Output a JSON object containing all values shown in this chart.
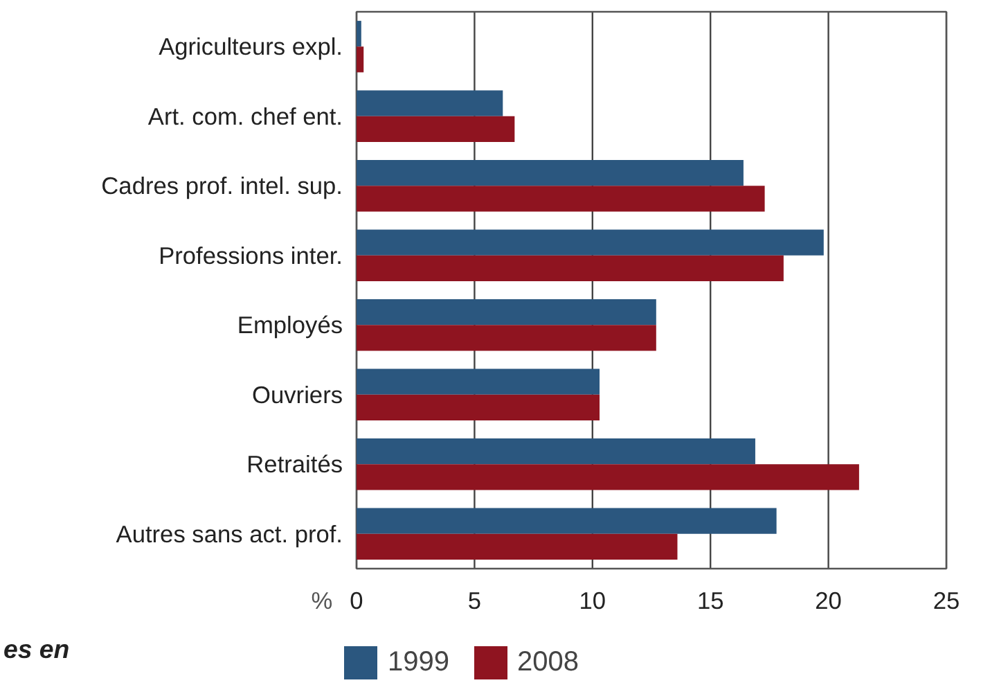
{
  "chart_data": {
    "type": "bar",
    "orientation": "horizontal",
    "xlabel": "%",
    "categories": [
      "Agriculteurs expl.",
      "Art. com. chef ent.",
      "Cadres prof. intel. sup.",
      "Professions inter.",
      "Employés",
      "Ouvriers",
      "Retraités",
      "Autres sans act. prof."
    ],
    "series": [
      {
        "name": "1999",
        "color": "#2b577f",
        "values": [
          0.2,
          6.2,
          16.4,
          19.8,
          12.7,
          10.3,
          16.9,
          17.8
        ]
      },
      {
        "name": "2008",
        "color": "#8f1420",
        "values": [
          0.3,
          6.7,
          17.3,
          18.1,
          12.7,
          10.3,
          21.3,
          13.6
        ]
      }
    ],
    "xlim": [
      0,
      25
    ],
    "xticks": [
      0,
      5,
      10,
      15,
      20,
      25
    ],
    "grid": "x",
    "legend": "bottom",
    "annotations": [
      "es en"
    ]
  }
}
